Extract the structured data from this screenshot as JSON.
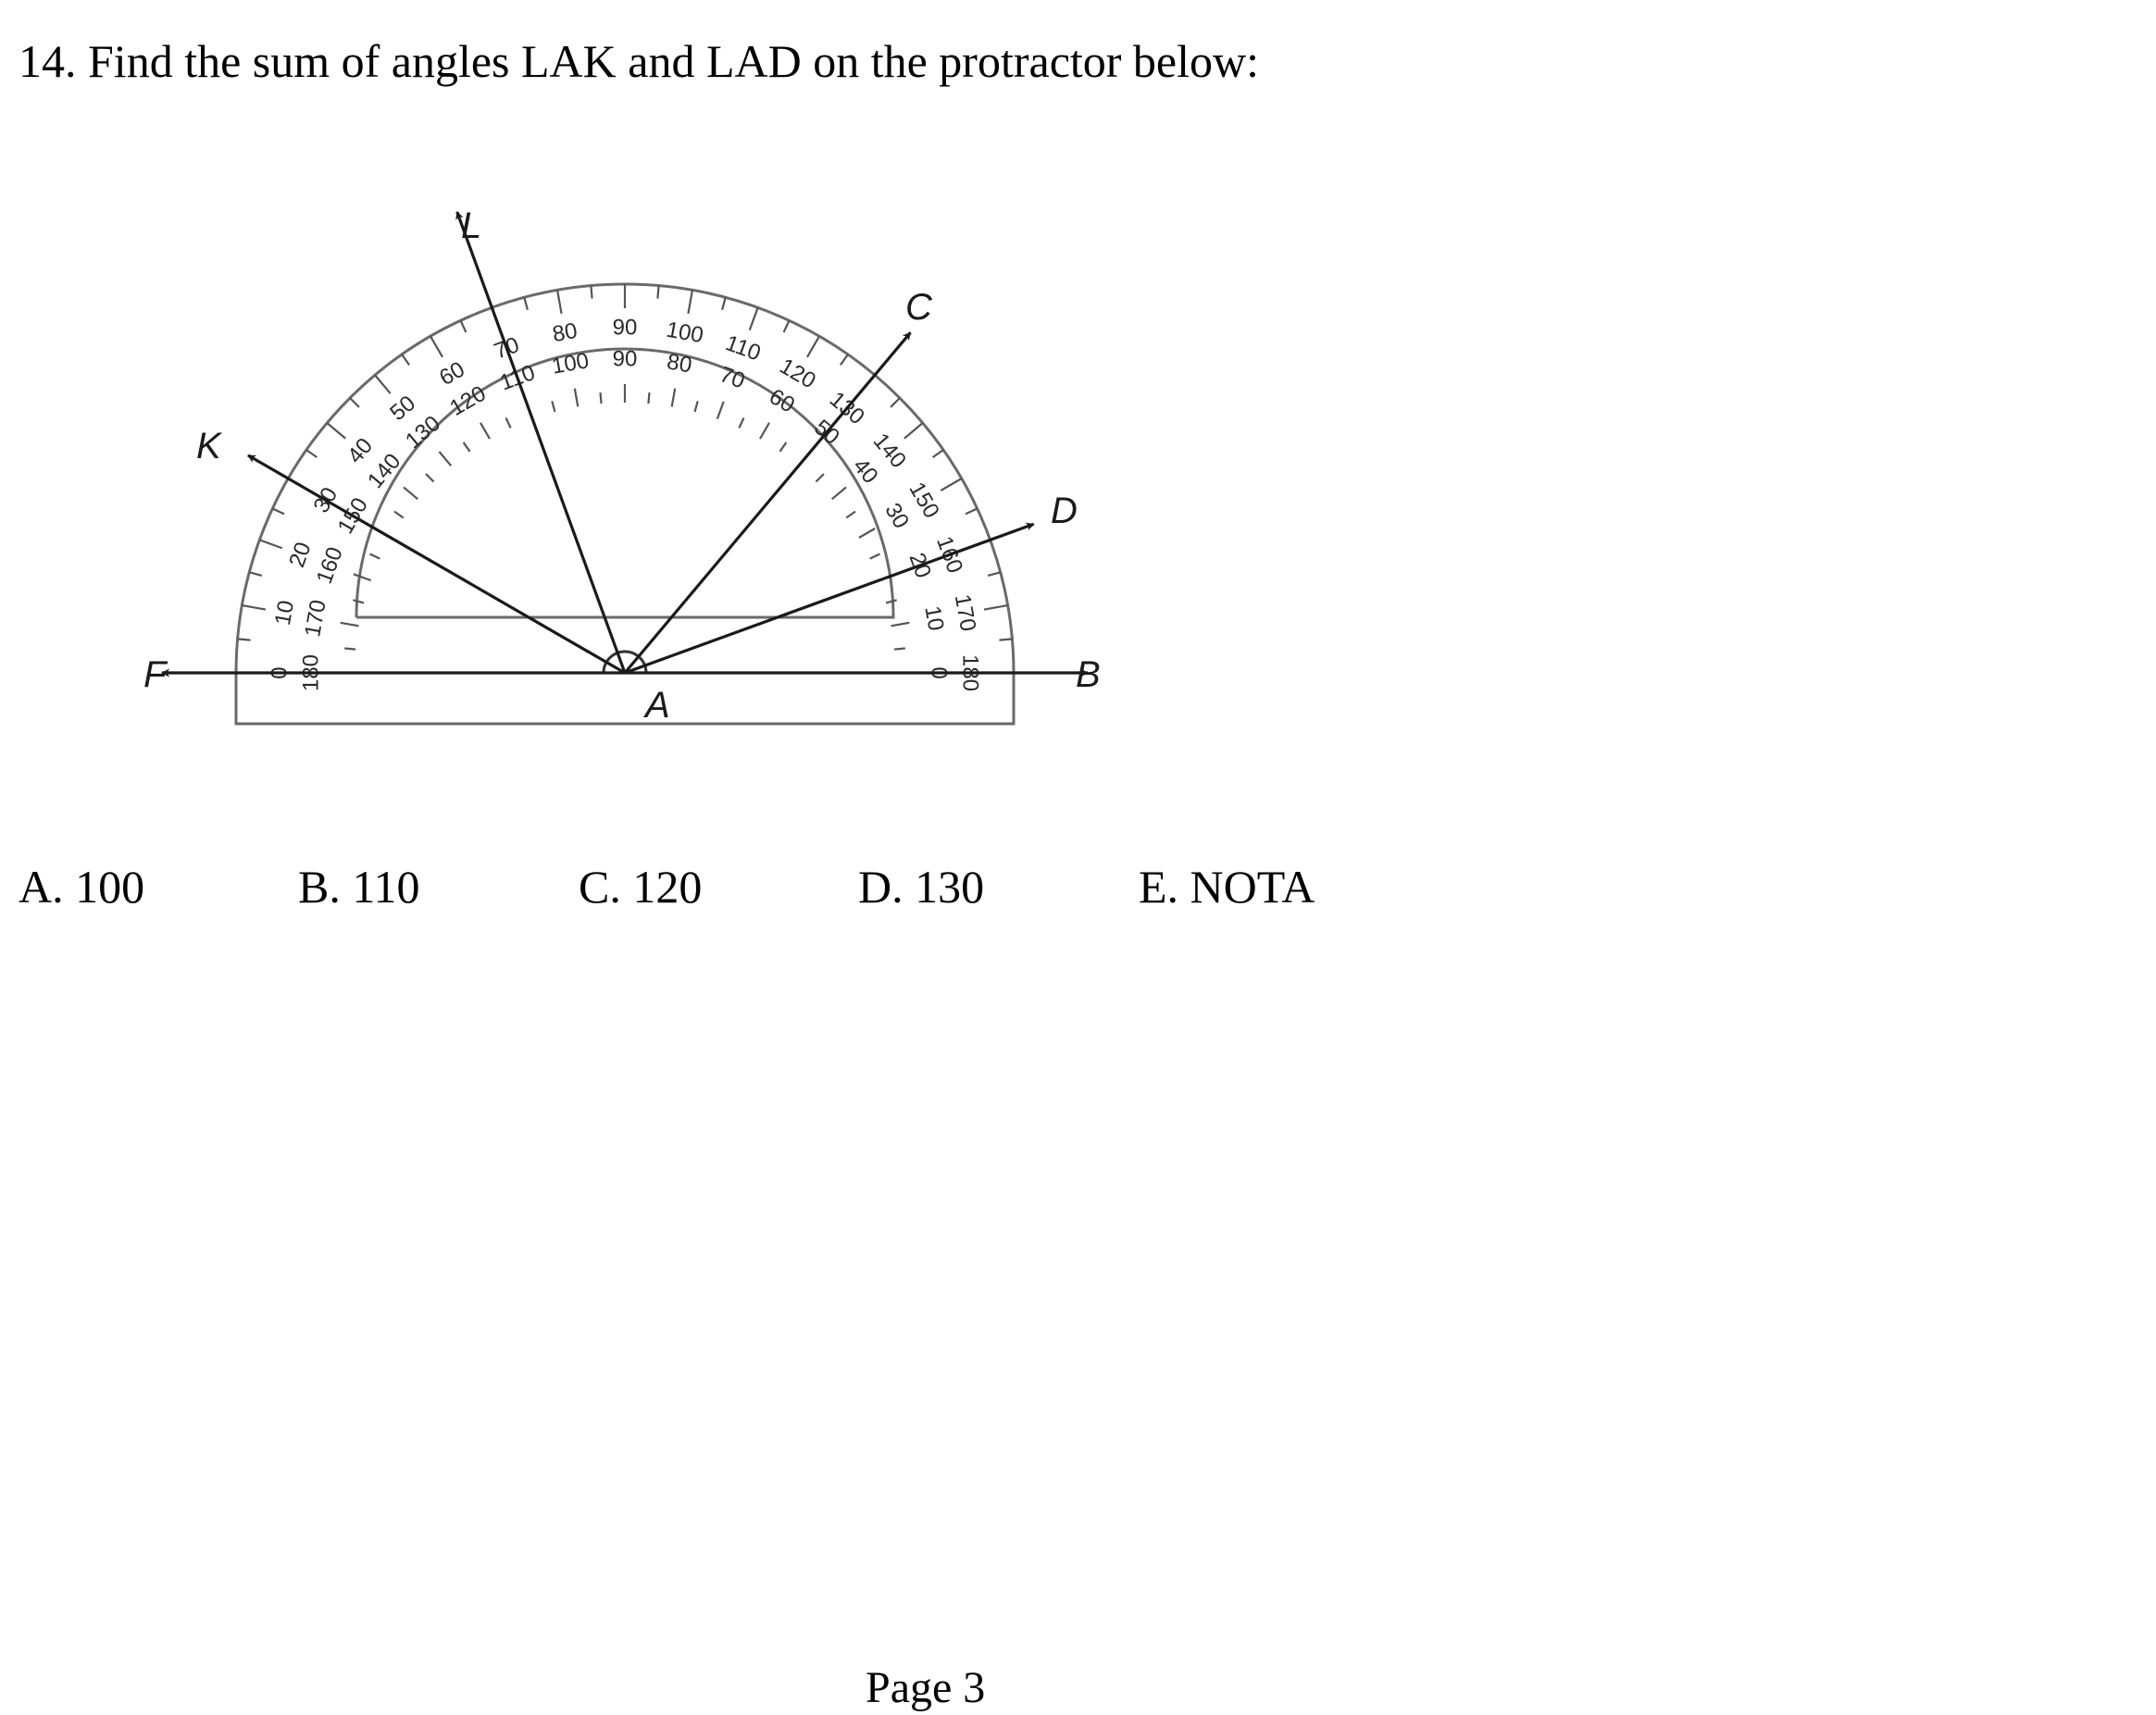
{
  "question": {
    "text": "14. Find the sum of angles LAK and LAD on the protractor below:"
  },
  "figure": {
    "points": {
      "L": "L",
      "K": "K",
      "C": "C",
      "D": "D",
      "F": "F",
      "B": "B",
      "A": "A"
    },
    "ray_angles_deg": {
      "B": 0,
      "D": 20,
      "C": 50,
      "L": 110,
      "K": 150,
      "F": 180
    },
    "scale_outer": [
      "0",
      "10",
      "20",
      "30",
      "40",
      "50",
      "60",
      "70",
      "80",
      "90",
      "100",
      "110",
      "120",
      "130",
      "140",
      "150",
      "160",
      "170",
      "180"
    ],
    "scale_inner": [
      "180",
      "170",
      "160",
      "150",
      "140",
      "130",
      "120",
      "110",
      "100",
      "90",
      "80",
      "70",
      "60",
      "50",
      "40",
      "30",
      "20",
      "10",
      "0"
    ]
  },
  "choices": [
    {
      "label": "A. 100"
    },
    {
      "label": "B. 110"
    },
    {
      "label": "C. 120"
    },
    {
      "label": "D. 130"
    },
    {
      "label": "E. NOTA"
    }
  ],
  "footer": {
    "page": "Page 3"
  }
}
